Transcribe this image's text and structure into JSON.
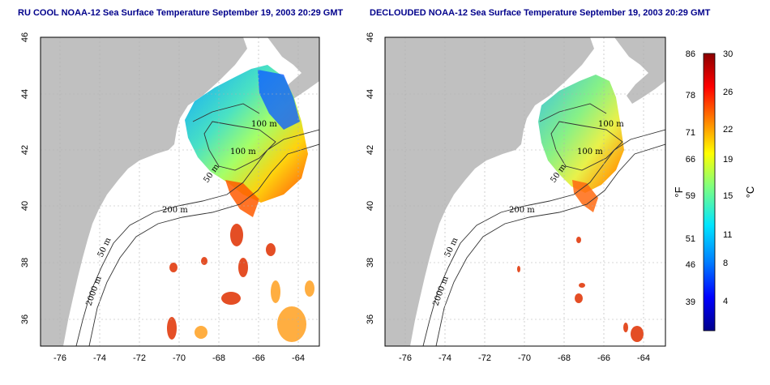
{
  "left_panel": {
    "title": "RU COOL NOAA-12 Sea Surface Temperature September 19, 2003 20:29 GMT"
  },
  "right_panel": {
    "title": "DECLOUDED NOAA-12 Sea Surface Temperature September 19, 2003 20:29 GMT"
  },
  "axes": {
    "lon_ticks": [
      "-76",
      "-74",
      "-72",
      "-70",
      "-68",
      "-66",
      "-64"
    ],
    "lat_ticks": [
      "46",
      "44",
      "42",
      "40",
      "38",
      "36"
    ]
  },
  "isobaths": {
    "label_100": "100 m",
    "label_50": "50 m",
    "label_200": "200 m",
    "label_2000": "2000 m"
  },
  "colorbar": {
    "fahrenheit_label": "°F",
    "celsius_label": "°C",
    "fahrenheit_ticks": [
      "86",
      "78",
      "71",
      "66",
      "59",
      "51",
      "46",
      "39"
    ],
    "celsius_ticks": [
      "30",
      "26",
      "22",
      "19",
      "15",
      "11",
      "8",
      "4"
    ],
    "colors": [
      "#00008b",
      "#0000ff",
      "#0080ff",
      "#00e5ff",
      "#7fff7f",
      "#ffff00",
      "#ff8000",
      "#ff0000",
      "#8b0000"
    ]
  },
  "colors": {
    "land": "#c0c0c0",
    "ocean": "#ffffff",
    "title": "#00008b"
  }
}
